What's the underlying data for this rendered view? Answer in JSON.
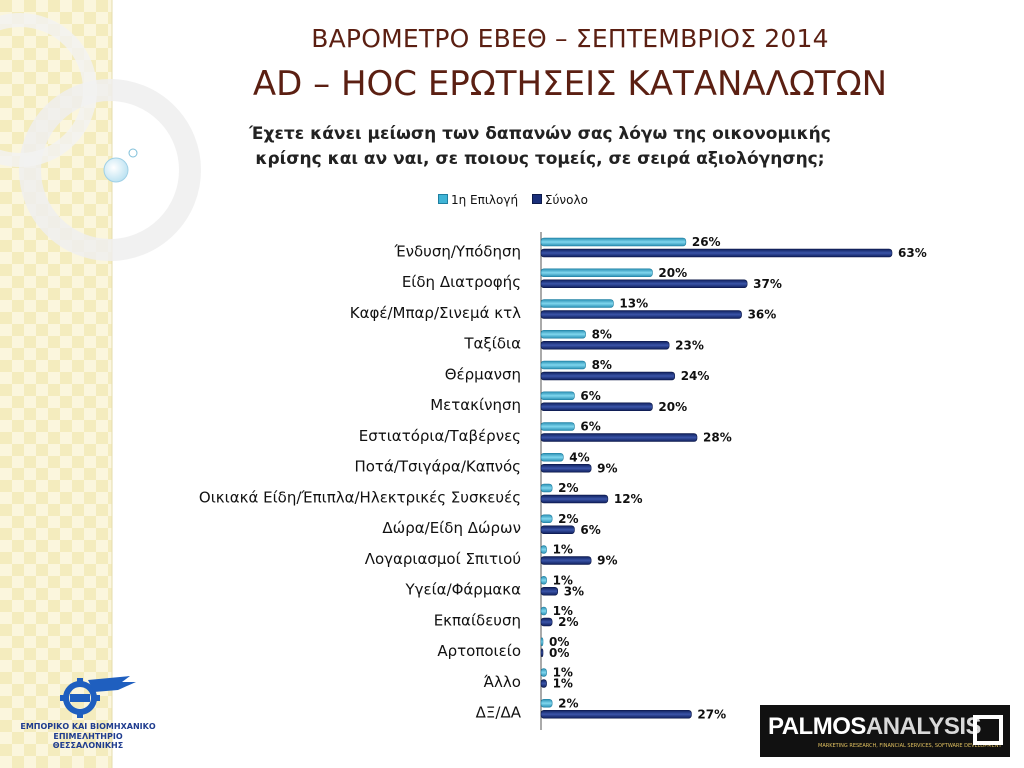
{
  "title_line1": "ΒΑΡΟΜΕΤΡΟ ΕΒΕΘ – ΣΕΠΤΕΜΒΡΙΟΣ 2014",
  "title_line2": "AD – HOC ΕΡΩΤΗΣΕΙΣ ΚΑΤΑΝΑΛΩΤΩΝ",
  "question_line1": "Έχετε κάνει μείωση των δαπανών σας λόγω της οικονομικής",
  "question_line2": "κρίσης και αν ναι, σε ποιους τομείς, σε σειρά αξιολόγησης;",
  "colors": {
    "first_choice": "#3fb4d6",
    "total": "#1a2f7a",
    "title": "#5b1f12"
  },
  "logo_left": {
    "line1": "ΕΜΠΟΡΙΚΟ ΚΑΙ ΒΙΟΜΗΧΑΝΙΚΟ",
    "line2": "ΕΠΙΜΕΛΗΤΗΡΙΟ ΘΕΣΣΑΛΟΝΙΚΗΣ"
  },
  "logo_right": {
    "brand_part1": "PALMOS",
    "brand_part2": "ANALYSIS",
    "tagline": "MARKETING RESEARCH, FINANCIAL SERVICES, SOFTWARE DEVELOPMENT"
  },
  "chart_data": {
    "type": "bar",
    "orientation": "horizontal",
    "legend_position": "top",
    "grid": false,
    "xlim": [
      0,
      63
    ],
    "categories": [
      "Ένδυση/Υπόδηση",
      "Είδη Διατροφής",
      "Καφέ/Μπαρ/Σινεμά κτλ",
      "Ταξίδια",
      "Θέρμανση",
      "Μετακίνηση",
      "Εστιατόρια/Ταβέρνες",
      "Ποτά/Τσιγάρα/Καπνός",
      "Οικιακά Είδη/Έπιπλα/Ηλεκτρικές Συσκευές",
      "Δώρα/Είδη Δώρων",
      "Λογαριασμοί Σπιτιού",
      "Υγεία/Φάρμακα",
      "Εκπαίδευση",
      "Αρτοποιείο",
      "Άλλο",
      "ΔΞ/ΔΑ"
    ],
    "series": [
      {
        "name": "1η Επιλογή",
        "values": [
          26,
          20,
          13,
          8,
          8,
          6,
          6,
          4,
          2,
          2,
          1,
          1,
          1,
          0,
          1,
          2
        ],
        "labels": [
          "26%",
          "20%",
          "13%",
          "8%",
          "8%",
          "6%",
          "6%",
          "4%",
          "2%",
          "2%",
          "1%",
          "1%",
          "1%",
          "0%",
          "1%",
          "2%"
        ]
      },
      {
        "name": "Σύνολο",
        "values": [
          63,
          37,
          36,
          23,
          24,
          20,
          28,
          9,
          12,
          6,
          9,
          3,
          2,
          0,
          1,
          27
        ],
        "labels": [
          "63%",
          "37%",
          "36%",
          "23%",
          "24%",
          "20%",
          "28%",
          "9%",
          "12%",
          "6%",
          "9%",
          "3%",
          "2%",
          "0%",
          "1%",
          "27%"
        ]
      }
    ]
  }
}
